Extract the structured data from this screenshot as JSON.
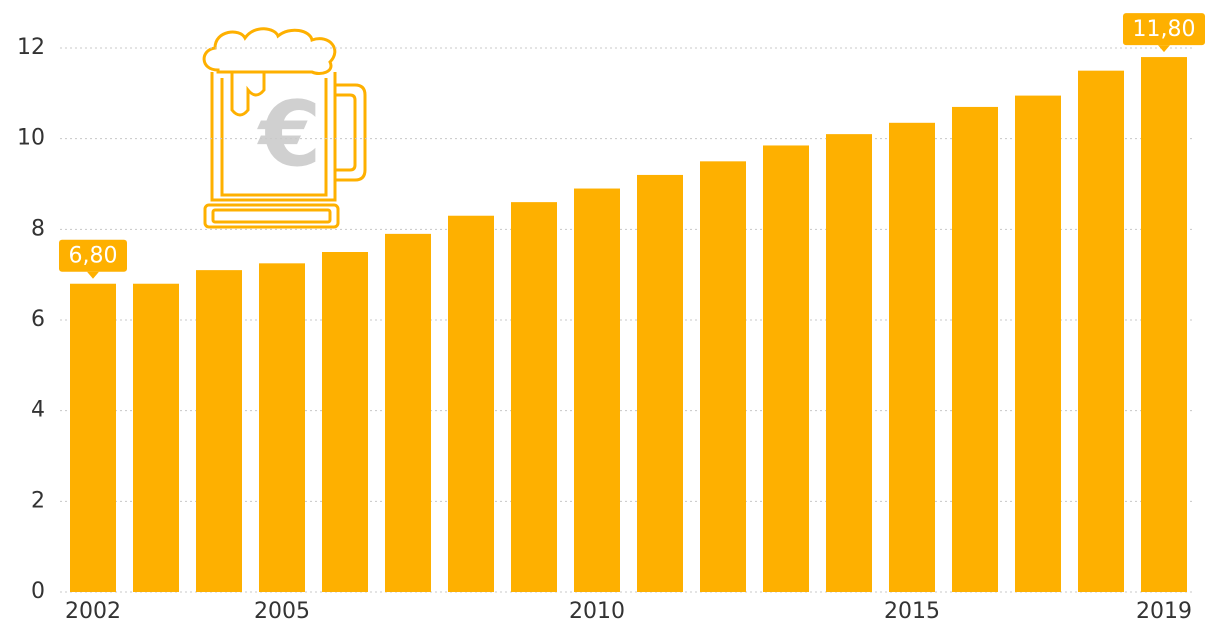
{
  "chart_data": {
    "type": "bar",
    "categories": [
      "2002",
      null,
      null,
      "2005",
      null,
      null,
      null,
      null,
      "2010",
      null,
      null,
      null,
      null,
      "2015",
      null,
      null,
      null,
      "2019"
    ],
    "values": [
      6.8,
      6.8,
      7.1,
      7.25,
      7.5,
      7.9,
      8.3,
      8.6,
      8.9,
      9.2,
      9.5,
      9.85,
      10.1,
      10.35,
      10.7,
      10.95,
      11.5,
      11.8
    ],
    "value_labels": [
      "6,80",
      null,
      null,
      null,
      null,
      null,
      null,
      null,
      null,
      null,
      null,
      null,
      null,
      null,
      null,
      null,
      null,
      "11,80"
    ],
    "color": "#feb000",
    "ylim": [
      0,
      12
    ],
    "yticks": [
      0,
      2,
      4,
      6,
      8,
      10,
      12
    ],
    "grid": true
  }
}
